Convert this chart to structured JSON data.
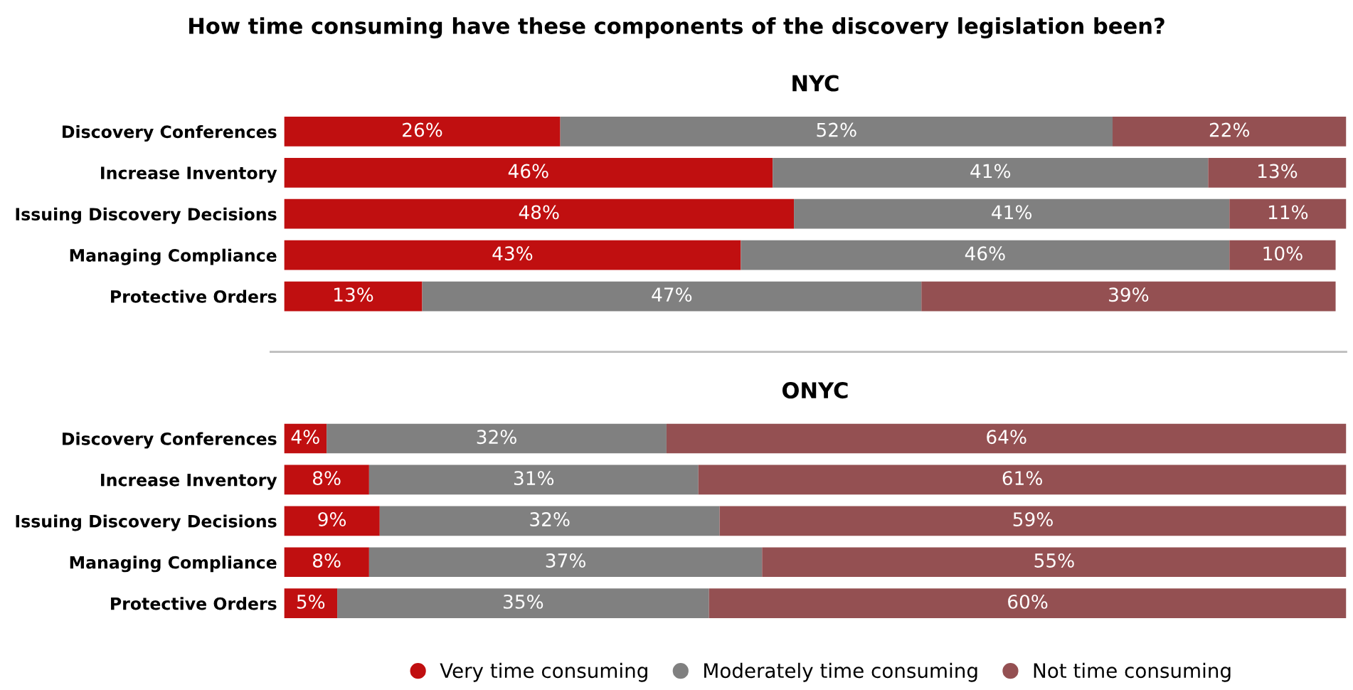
{
  "chart_data": [
    {
      "type": "bar",
      "orientation": "horizontal",
      "stacked": true,
      "title": "How time consuming have these components of the discovery legislation been?",
      "subtitle": "NYC",
      "categories": [
        "Discovery Conferences",
        "Increase Inventory",
        "Issuing Discovery Decisions",
        "Managing Compliance",
        "Protective Orders"
      ],
      "legend": false,
      "series": [
        {
          "color": "#c00f10",
          "values": [
            26,
            46,
            48,
            43,
            13
          ],
          "value_labels": [
            "26%",
            "46%",
            "48%",
            "43%",
            "13%"
          ]
        },
        {
          "color": "#808080",
          "values": [
            52,
            41,
            41,
            46,
            47
          ],
          "value_labels": [
            "52%",
            "41%",
            "41%",
            "46%",
            "47%"
          ]
        },
        {
          "color": "#945052",
          "values": [
            22,
            13,
            11,
            10,
            39
          ],
          "value_labels": [
            "22%",
            "13%",
            "11%",
            "10%",
            "39%"
          ]
        }
      ]
    },
    {
      "type": "bar",
      "orientation": "horizontal",
      "stacked": true,
      "subtitle": "ONYC",
      "categories": [
        "Discovery Conferences",
        "Increase Inventory",
        "Issuing Discovery Decisions",
        "Managing Compliance",
        "Protective Orders"
      ],
      "legend": "bottom",
      "marker": "circle",
      "series": [
        {
          "name": "Very time consuming",
          "color": "#c00f10",
          "values": [
            4,
            8,
            9,
            8,
            5
          ],
          "value_labels": [
            "4%",
            "8%",
            "9%",
            "8%",
            "5%"
          ]
        },
        {
          "name": "Moderately time consuming",
          "color": "#808080",
          "values": [
            32,
            31,
            32,
            37,
            35
          ],
          "value_labels": [
            "32%",
            "31%",
            "32%",
            "37%",
            "35%"
          ]
        },
        {
          "name": "Not time consuming",
          "color": "#945052",
          "values": [
            64,
            61,
            59,
            55,
            60
          ],
          "value_labels": [
            "64%",
            "61%",
            "59%",
            "55%",
            "60%"
          ]
        }
      ]
    }
  ]
}
